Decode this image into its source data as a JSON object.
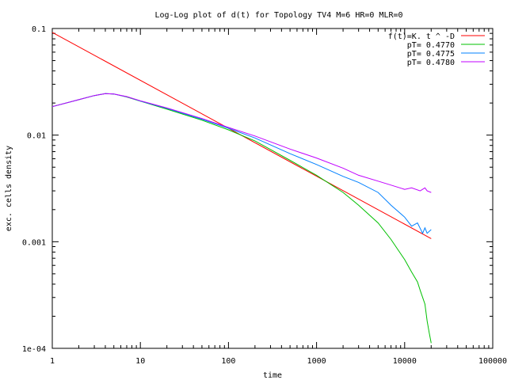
{
  "chart_data": {
    "type": "line",
    "title": "Log-Log plot of d(t) for Topology TV4 M=6 HR=0 MLR=0",
    "xlabel": "time",
    "ylabel": "exc. cells density",
    "xscale": "log",
    "yscale": "log",
    "xlim": [
      1,
      100000
    ],
    "ylim": [
      0.0001,
      0.1
    ],
    "x_ticks": [
      1,
      10,
      100,
      1000,
      10000,
      100000
    ],
    "x_tick_labels": [
      "1",
      "10",
      "100",
      "1000",
      "10000",
      "100000"
    ],
    "y_ticks": [
      0.0001,
      0.001,
      0.01,
      0.1
    ],
    "y_tick_labels": [
      "1e-04",
      "0.001",
      "0.01",
      "0.1"
    ],
    "grid": false,
    "legend_position": "top-right",
    "series": [
      {
        "name": "f(t)=K. t ^ -D",
        "color": "#ff0000",
        "x": [
          1,
          20000
        ],
        "y": [
          0.092,
          0.00107
        ]
      },
      {
        "name": "pT= 0.4770",
        "color": "#00c000",
        "x": [
          1,
          2,
          3,
          4,
          5,
          7,
          10,
          20,
          50,
          100,
          200,
          500,
          1000,
          2000,
          3000,
          5000,
          7000,
          10000,
          12000,
          14000,
          15000,
          16000,
          17000,
          18000,
          19000,
          20000
        ],
        "y": [
          0.0185,
          0.0215,
          0.0235,
          0.0245,
          0.0243,
          0.0228,
          0.0208,
          0.0175,
          0.0138,
          0.0112,
          0.0088,
          0.0058,
          0.0042,
          0.0029,
          0.0022,
          0.0015,
          0.00105,
          0.00068,
          0.00052,
          0.00042,
          0.00035,
          0.0003,
          0.00026,
          0.00018,
          0.00014,
          0.000112
        ]
      },
      {
        "name": "pT= 0.4775",
        "color": "#0080ff",
        "x": [
          1,
          2,
          3,
          4,
          5,
          7,
          10,
          20,
          50,
          100,
          200,
          500,
          1000,
          2000,
          3000,
          5000,
          7000,
          10000,
          12000,
          14000,
          16000,
          17000,
          18000,
          20000
        ],
        "y": [
          0.0185,
          0.0215,
          0.0235,
          0.0245,
          0.0243,
          0.0229,
          0.0209,
          0.0178,
          0.0141,
          0.0116,
          0.0094,
          0.0067,
          0.0053,
          0.0041,
          0.0036,
          0.0029,
          0.0022,
          0.0017,
          0.0014,
          0.0015,
          0.0012,
          0.00135,
          0.0012,
          0.0013
        ]
      },
      {
        "name": "pT= 0.4780",
        "color": "#c000ff",
        "x": [
          1,
          2,
          3,
          4,
          5,
          7,
          10,
          20,
          50,
          100,
          200,
          500,
          1000,
          2000,
          3000,
          5000,
          7000,
          10000,
          12000,
          15000,
          17000,
          18000,
          20000
        ],
        "y": [
          0.0185,
          0.0215,
          0.0235,
          0.0245,
          0.0243,
          0.023,
          0.021,
          0.018,
          0.0143,
          0.0118,
          0.0098,
          0.0074,
          0.0061,
          0.0049,
          0.0042,
          0.0037,
          0.0034,
          0.0031,
          0.0032,
          0.003,
          0.0032,
          0.003,
          0.0029
        ]
      }
    ]
  }
}
